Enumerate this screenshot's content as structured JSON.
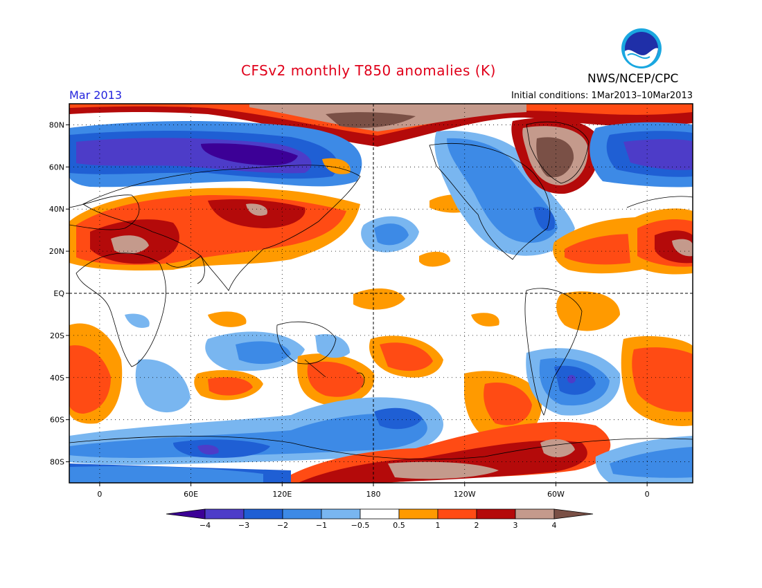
{
  "header": {
    "title": "CFSv2 monthly T850 anomalies (K)",
    "agency": "NWS/NCEP/CPC",
    "logo_text": "NOAA",
    "period": "Mar 2013",
    "initial_conditions": "Initial conditions: 1Mar2013–10Mar2013"
  },
  "map": {
    "lat_ticks": [
      "80N",
      "60N",
      "40N",
      "20N",
      "EQ",
      "20S",
      "40S",
      "60S",
      "80S"
    ],
    "lat_values": [
      80,
      60,
      40,
      20,
      0,
      -20,
      -40,
      -60,
      -80
    ],
    "lon_ticks": [
      "0",
      "60E",
      "120E",
      "180",
      "120W",
      "60W",
      "0"
    ],
    "lon_values": [
      0,
      60,
      120,
      180,
      240,
      300,
      360
    ],
    "lon_range": [
      -20,
      390
    ],
    "lat_range": [
      -90,
      90
    ],
    "grid": true
  },
  "colorbar": {
    "labels": [
      "−4",
      "−3",
      "−2",
      "−1",
      "−0.5",
      "0.5",
      "1",
      "2",
      "3",
      "4"
    ],
    "colors": [
      "#3c0096",
      "#4d3cc8",
      "#1f5fd4",
      "#3d8ae6",
      "#79b6f0",
      "#ffffff",
      "#ff9a00",
      "#ff4b14",
      "#b40a0a",
      "#c49a8c",
      "#7a5046"
    ]
  },
  "colors": {
    "title": "#e0001a",
    "period": "#2222dd"
  }
}
